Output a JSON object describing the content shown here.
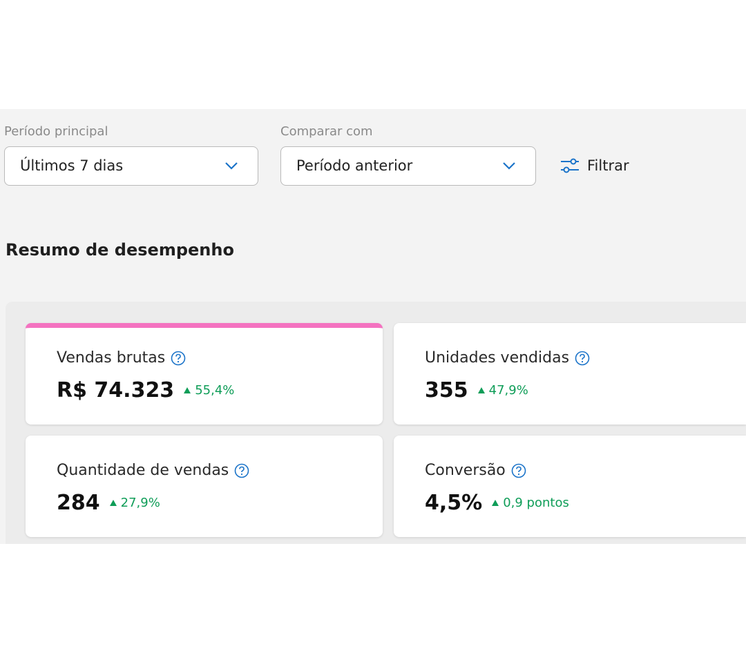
{
  "filters": [
    {
      "label": "Período principal",
      "value": "Últimos 7 dias"
    },
    {
      "label": "Comparar com",
      "value": "Período anterior"
    }
  ],
  "filter_button": "Filtrar",
  "summary": {
    "title": "Resumo de desempenho",
    "cards": [
      {
        "label": "Vendas brutas",
        "value": "R$ 74.323",
        "change": "55,4%"
      },
      {
        "label": "Unidades vendidas",
        "value": "355",
        "change": "47,9%"
      },
      {
        "label": "Quantidade de vendas",
        "value": "284",
        "change": "27,9%"
      },
      {
        "label": "Conversão",
        "value": "4,5%",
        "change": "0,9 pontos"
      }
    ]
  }
}
